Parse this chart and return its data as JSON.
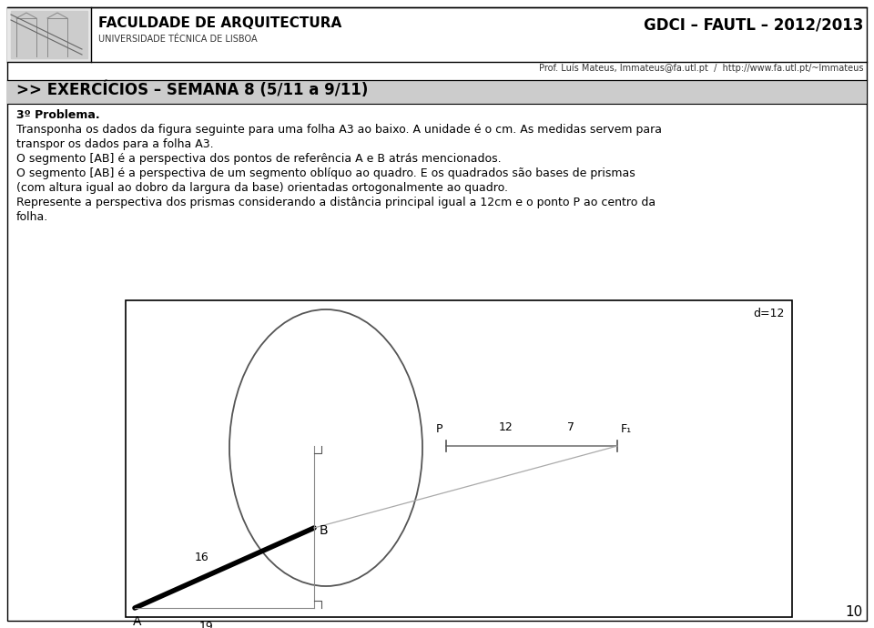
{
  "page_width": 9.6,
  "page_height": 6.9,
  "bg_color": "#ffffff",
  "header_institution": "FACULDADE DE ARQUITECTURA",
  "header_sub": "UNIVERSIDADE TÉCNICA DE LISBOA",
  "header_right": "GDCI – FAUTL – 2012/2013",
  "header_prof": "Prof. Luís Mateus, lmmateus@fa.utl.pt  /  http://www.fa.utl.pt/~lmmateus",
  "title_text": ">> EXERCÍCIOS – SEMANA 8 (5/11 a 9/11)",
  "body_lines": [
    "3º Problema.",
    "Transponha os dados da figura seguinte para uma folha A3 ao baixo. A unidade é o cm. As medidas servem para transpor os dados para a folha A3.",
    "O segmento [AB] é a perspectiva dos pontos de referência A e B atrás mencionados.",
    "O segmento [AB] é a perspectiva de um segmento oblíquo ao quadro. E os quadrados são bases de prismas (com altura igual ao dobro da largura da base) orientadas ortogonalmente ao quadro.",
    "Represente a perspectiva dos prismas considerando a distância principal igual a 12cm e o ponto P ao centro da folha."
  ],
  "page_number": "10"
}
